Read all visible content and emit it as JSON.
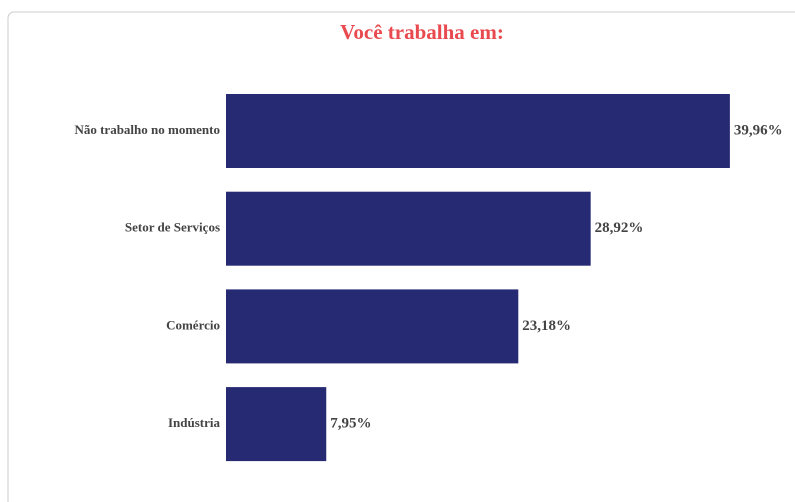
{
  "chart_data": {
    "type": "bar",
    "orientation": "horizontal",
    "title": "Você trabalha em:",
    "categories": [
      "Não trabalho no momento",
      "Setor de Serviços",
      "Comércio",
      "Indústria"
    ],
    "values": [
      39.96,
      28.92,
      23.18,
      7.95
    ],
    "value_labels": [
      "39,96%",
      "28,92%",
      "23,18%",
      "7,95%"
    ],
    "color": "#262a73"
  }
}
